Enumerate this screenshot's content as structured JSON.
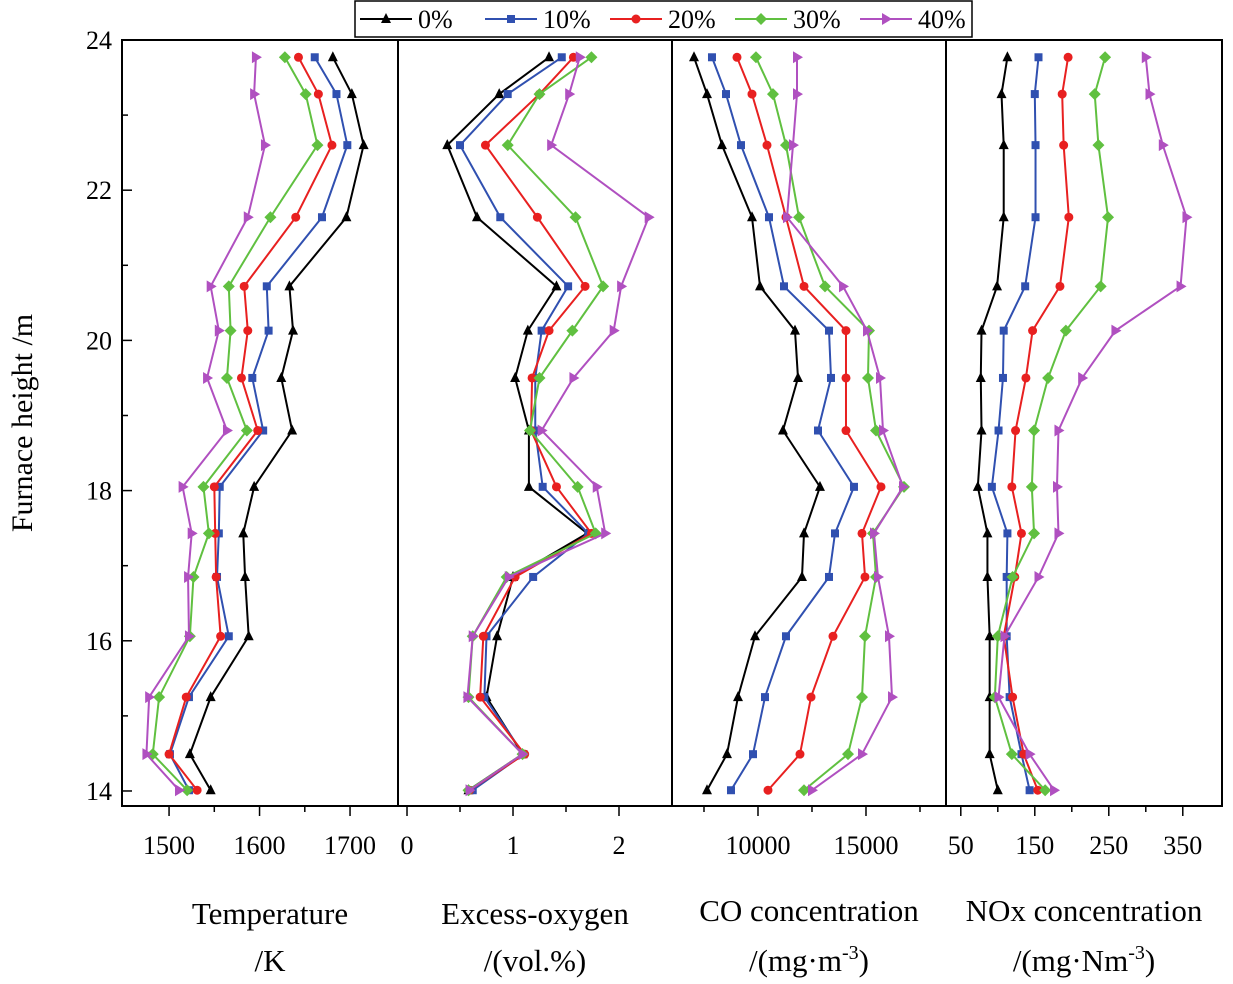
{
  "chart_data": {
    "type": "line",
    "ylabel": "Furnace height /m",
    "ylim": [
      13.8,
      24
    ],
    "yticks": [
      14,
      16,
      18,
      20,
      22,
      24
    ],
    "heights": [
      23.77,
      23.28,
      22.6,
      21.64,
      20.72,
      20.13,
      19.5,
      18.8,
      18.05,
      17.43,
      16.85,
      16.06,
      15.25,
      14.49,
      14.01
    ],
    "legend": {
      "placement": "top",
      "entries": [
        {
          "name": "0%",
          "color": "#000000",
          "marker": "triangle-up"
        },
        {
          "name": "10%",
          "color": "#3050b0",
          "marker": "square"
        },
        {
          "name": "20%",
          "color": "#e82020",
          "marker": "circle"
        },
        {
          "name": "30%",
          "color": "#60c040",
          "marker": "diamond"
        },
        {
          "name": "40%",
          "color": "#b050c0",
          "marker": "triangle-right"
        }
      ]
    },
    "panels": [
      {
        "xlabel": "Temperature",
        "xunit": "/K",
        "xunit_sup": "",
        "xunit_tail": "",
        "xlim": [
          1448,
          1753
        ],
        "xticks": [
          1500,
          1600,
          1700
        ],
        "minor": [
          1550,
          1650
        ],
        "series": [
          [
            1681,
            1702,
            1715,
            1696,
            1633,
            1637,
            1624,
            1636,
            1594,
            1582,
            1584,
            1588,
            1546,
            1523,
            1546
          ],
          [
            1661,
            1685,
            1697,
            1669,
            1608,
            1610,
            1592,
            1604,
            1556,
            1555,
            1553,
            1566,
            1522,
            1501,
            1522
          ],
          [
            1643,
            1665,
            1680,
            1640,
            1583,
            1587,
            1580,
            1598,
            1550,
            1551,
            1552,
            1557,
            1519,
            1500,
            1531
          ],
          [
            1628,
            1651,
            1664,
            1612,
            1566,
            1568,
            1564,
            1586,
            1538,
            1544,
            1527,
            1523,
            1489,
            1482,
            1520
          ],
          [
            1596,
            1594,
            1606,
            1587,
            1546,
            1555,
            1542,
            1564,
            1515,
            1525,
            1521,
            1522,
            1478,
            1475,
            1511
          ]
        ]
      },
      {
        "xlabel": "Excess-oxygen",
        "xunit": "/(vol.%)",
        "xunit_sup": "",
        "xunit_tail": "",
        "xlim": [
          -0.085,
          2.5
        ],
        "xticks": [
          0,
          1,
          2
        ],
        "minor": [
          0.5,
          1.5
        ],
        "series": [
          [
            1.34,
            0.87,
            0.38,
            0.66,
            1.41,
            1.14,
            1.02,
            1.15,
            1.15,
            1.7,
            1.0,
            0.85,
            0.75,
            1.09,
            0.58
          ],
          [
            1.46,
            0.95,
            0.5,
            0.88,
            1.52,
            1.27,
            1.21,
            1.21,
            1.28,
            1.71,
            1.19,
            0.75,
            0.73,
            1.1,
            0.62
          ],
          [
            1.57,
            1.25,
            0.74,
            1.23,
            1.68,
            1.34,
            1.18,
            1.17,
            1.41,
            1.74,
            1.02,
            0.72,
            0.69,
            1.11,
            0.59
          ],
          [
            1.74,
            1.25,
            0.95,
            1.59,
            1.85,
            1.56,
            1.25,
            1.16,
            1.61,
            1.78,
            0.94,
            0.62,
            0.58,
            1.09,
            0.58
          ],
          [
            1.63,
            1.53,
            1.36,
            2.28,
            2.02,
            1.95,
            1.57,
            1.27,
            1.79,
            1.87,
            0.96,
            0.62,
            0.57,
            1.09,
            0.59
          ]
        ]
      },
      {
        "xlabel": "CO concentration",
        "xunit": "/(mg·m",
        "xunit_sup": "-3",
        "xunit_tail": ")",
        "xlim": [
          6019,
          18704
        ],
        "xticks": [
          10000,
          15000
        ],
        "minor": [
          7500,
          12500,
          17500
        ],
        "series": [
          [
            7037,
            7639,
            8333,
            9722,
            10093,
            11713,
            11852,
            11157,
            12870,
            12130,
            12037,
            9861,
            9074,
            8565,
            7639
          ],
          [
            7870,
            8519,
            9213,
            10509,
            11204,
            13287,
            13380,
            12778,
            14444,
            13565,
            13287,
            11296,
            10324,
            9769,
            8750
          ],
          [
            9028,
            9722,
            10417,
            11296,
            12130,
            14074,
            14074,
            14074,
            15694,
            14815,
            14954,
            13472,
            12454,
            11944,
            10463
          ],
          [
            9907,
            10694,
            11296,
            11898,
            13102,
            15139,
            15093,
            15463,
            16759,
            15324,
            15463,
            14954,
            14815,
            14167,
            12130
          ],
          [
            11806,
            11806,
            11620,
            11343,
            13935,
            15046,
            15648,
            15787,
            16713,
            15370,
            15556,
            16065,
            16204,
            14815,
            12500
          ]
        ]
      },
      {
        "xlabel": "NOx concentration",
        "xunit": "/(mg·Nm",
        "xunit_sup": "-3",
        "xunit_tail": ")",
        "xlim": [
          30,
          403
        ],
        "xticks": [
          50,
          150,
          250,
          350
        ],
        "minor": [
          100,
          200,
          300
        ],
        "series": [
          [
            113,
            105,
            108,
            108,
            99,
            78,
            77,
            78,
            73,
            86,
            86,
            89,
            89,
            89,
            100
          ],
          [
            155,
            150,
            151,
            151,
            137,
            108,
            107,
            101,
            92,
            113,
            112,
            112,
            116,
            132,
            143
          ],
          [
            195,
            187,
            189,
            196,
            184,
            147,
            138,
            124,
            119,
            132,
            123,
            108,
            120,
            135,
            154
          ],
          [
            245,
            231,
            236,
            249,
            239,
            192,
            168,
            149,
            146,
            149,
            120,
            100,
            96,
            119,
            164
          ],
          [
            300,
            305,
            323,
            355,
            347,
            259,
            214,
            182,
            180,
            182,
            155,
            109,
            101,
            143,
            176
          ]
        ]
      }
    ]
  }
}
